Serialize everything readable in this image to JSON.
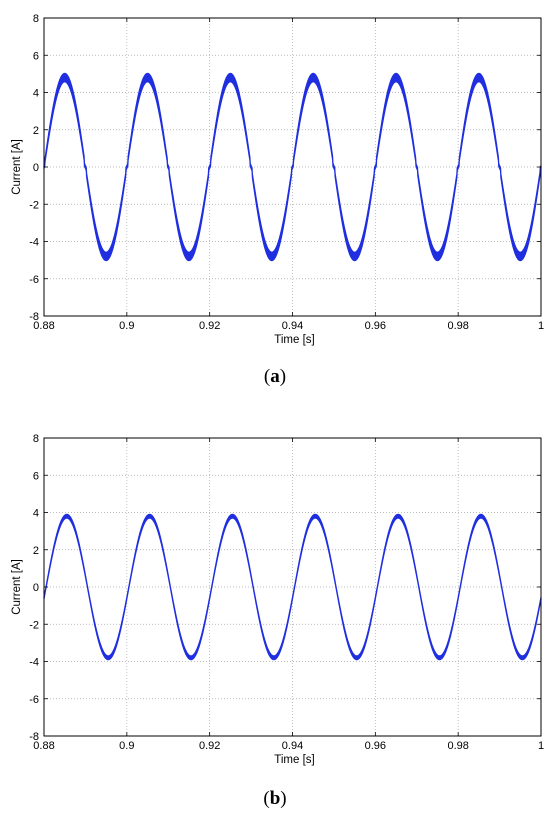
{
  "chart_data": [
    {
      "type": "line",
      "panel_label": "a",
      "xlabel": "Time [s]",
      "ylabel": "Current [A]",
      "xlim": [
        0.88,
        1.0
      ],
      "ylim": [
        -8,
        8
      ],
      "xticks": [
        "0.88",
        "0.9",
        "0.92",
        "0.94",
        "0.96",
        "0.98",
        "1"
      ],
      "yticks": [
        "8",
        "6",
        "4",
        "2",
        "0",
        "-2",
        "-4",
        "-6",
        "-8"
      ],
      "grid": "dotted",
      "series": [
        {
          "signal": "sinusoid",
          "frequency_hz": 50,
          "amplitude_a": 4.8,
          "ripple_band_a": 0.45,
          "zero_crossing_flat": true,
          "phase_zero_at_s": 0.88,
          "color": "#1f2fe0"
        }
      ]
    },
    {
      "type": "line",
      "panel_label": "b",
      "xlabel": "Time [s]",
      "ylabel": "Current [A]",
      "xlim": [
        0.88,
        1.0
      ],
      "ylim": [
        -8,
        8
      ],
      "xticks": [
        "0.88",
        "0.9",
        "0.92",
        "0.94",
        "0.96",
        "0.98",
        "1"
      ],
      "yticks": [
        "8",
        "6",
        "4",
        "2",
        "0",
        "-2",
        "-4",
        "-6",
        "-8"
      ],
      "grid": "dotted",
      "series": [
        {
          "signal": "sinusoid",
          "frequency_hz": 50,
          "amplitude_a": 3.8,
          "ripple_band_a": 0.2,
          "zero_crossing_flat": false,
          "phase_zero_at_s": 0.8805,
          "color": "#1f2fe0"
        }
      ]
    }
  ]
}
